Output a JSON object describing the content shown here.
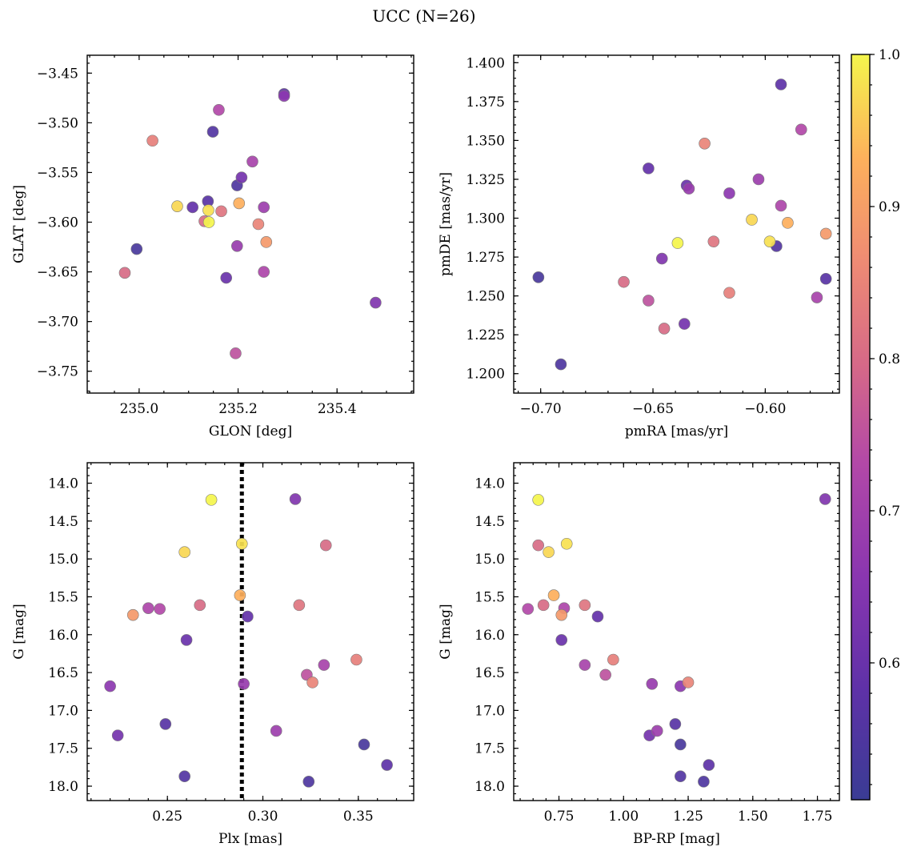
{
  "chart_data": {
    "title": "UCC (N=26)",
    "colorbar": {
      "colormap": "plasma",
      "range": [
        0.51,
        1.0
      ],
      "ticks": [
        "1.0",
        "0.9",
        "0.8",
        "0.7",
        "0.6"
      ],
      "tick_values": [
        1.0,
        0.9,
        0.8,
        0.7,
        0.6
      ]
    },
    "stars": [
      {
        "glon": 234.995,
        "glat": -3.627,
        "pmra": -0.701,
        "pmde": 1.262,
        "plx": 0.353,
        "g": 17.45,
        "bprp": 1.22,
        "prob": 0.54
      },
      {
        "glon": 235.198,
        "glat": -3.563,
        "pmra": -0.691,
        "pmde": 1.206,
        "plx": 0.324,
        "g": 17.94,
        "bprp": 1.31,
        "prob": 0.55
      },
      {
        "glon": 235.149,
        "glat": -3.509,
        "pmra": -0.595,
        "pmde": 1.282,
        "plx": 0.259,
        "g": 17.87,
        "bprp": 1.22,
        "prob": 0.56
      },
      {
        "glon": 235.139,
        "glat": -3.579,
        "pmra": -0.573,
        "pmde": 1.261,
        "plx": 0.249,
        "g": 17.18,
        "bprp": 1.2,
        "prob": 0.57
      },
      {
        "glon": 235.293,
        "glat": -3.471,
        "pmra": -0.593,
        "pmde": 1.386,
        "plx": 0.365,
        "g": 17.72,
        "bprp": 1.33,
        "prob": 0.58
      },
      {
        "glon": 235.108,
        "glat": -3.585,
        "pmra": -0.652,
        "pmde": 1.332,
        "plx": 0.292,
        "g": 15.76,
        "bprp": 0.9,
        "prob": 0.59
      },
      {
        "glon": 235.176,
        "glat": -3.656,
        "pmra": -0.635,
        "pmde": 1.321,
        "plx": 0.26,
        "g": 16.07,
        "bprp": 0.76,
        "prob": 0.6
      },
      {
        "glon": 235.207,
        "glat": -3.555,
        "pmra": -0.636,
        "pmde": 1.232,
        "plx": 0.224,
        "g": 17.33,
        "bprp": 1.1,
        "prob": 0.62
      },
      {
        "glon": 235.478,
        "glat": -3.681,
        "pmra": -0.646,
        "pmde": 1.274,
        "plx": 0.317,
        "g": 14.21,
        "bprp": 1.78,
        "prob": 0.64
      },
      {
        "glon": 235.293,
        "glat": -3.473,
        "pmra": -0.616,
        "pmde": 1.316,
        "plx": 0.22,
        "g": 16.68,
        "bprp": 1.22,
        "prob": 0.66
      },
      {
        "glon": 235.198,
        "glat": -3.624,
        "pmra": -0.634,
        "pmde": 1.319,
        "plx": 0.29,
        "g": 16.65,
        "bprp": 1.11,
        "prob": 0.68
      },
      {
        "glon": 235.252,
        "glat": -3.585,
        "pmra": -0.603,
        "pmde": 1.325,
        "plx": 0.307,
        "g": 17.27,
        "bprp": 1.13,
        "prob": 0.69
      },
      {
        "glon": 235.229,
        "glat": -3.539,
        "pmra": -0.577,
        "pmde": 1.249,
        "plx": 0.332,
        "g": 16.4,
        "bprp": 0.85,
        "prob": 0.71
      },
      {
        "glon": 235.252,
        "glat": -3.65,
        "pmra": -0.593,
        "pmde": 1.308,
        "plx": 0.24,
        "g": 15.65,
        "bprp": 0.77,
        "prob": 0.72
      },
      {
        "glon": 235.161,
        "glat": -3.487,
        "pmra": -0.584,
        "pmde": 1.357,
        "plx": 0.246,
        "g": 15.66,
        "bprp": 0.63,
        "prob": 0.73
      },
      {
        "glon": 235.195,
        "glat": -3.732,
        "pmra": -0.652,
        "pmde": 1.247,
        "plx": 0.323,
        "g": 16.53,
        "bprp": 0.93,
        "prob": 0.75
      },
      {
        "glon": 234.971,
        "glat": -3.651,
        "pmra": -0.645,
        "pmde": 1.229,
        "plx": 0.267,
        "g": 15.61,
        "bprp": 0.69,
        "prob": 0.8
      },
      {
        "glon": 235.132,
        "glat": -3.599,
        "pmra": -0.663,
        "pmde": 1.259,
        "plx": 0.333,
        "g": 14.82,
        "bprp": 0.67,
        "prob": 0.8
      },
      {
        "glon": 235.166,
        "glat": -3.589,
        "pmra": -0.623,
        "pmde": 1.285,
        "plx": 0.319,
        "g": 15.61,
        "bprp": 0.85,
        "prob": 0.82
      },
      {
        "glon": 235.027,
        "glat": -3.518,
        "pmra": -0.616,
        "pmde": 1.252,
        "plx": 0.349,
        "g": 16.33,
        "bprp": 0.96,
        "prob": 0.84
      },
      {
        "glon": 235.241,
        "glat": -3.602,
        "pmra": -0.627,
        "pmde": 1.348,
        "plx": 0.326,
        "g": 16.63,
        "bprp": 1.25,
        "prob": 0.85
      },
      {
        "glon": 235.257,
        "glat": -3.62,
        "pmra": -0.573,
        "pmde": 1.29,
        "plx": 0.232,
        "g": 15.74,
        "bprp": 0.76,
        "prob": 0.89
      },
      {
        "glon": 235.202,
        "glat": -3.581,
        "pmra": -0.59,
        "pmde": 1.297,
        "plx": 0.288,
        "g": 15.48,
        "bprp": 0.73,
        "prob": 0.93
      },
      {
        "glon": 235.077,
        "glat": -3.584,
        "pmra": -0.606,
        "pmde": 1.299,
        "plx": 0.259,
        "g": 14.91,
        "bprp": 0.71,
        "prob": 0.97
      },
      {
        "glon": 235.14,
        "glat": -3.588,
        "pmra": -0.598,
        "pmde": 1.285,
        "plx": 0.289,
        "g": 14.8,
        "bprp": 0.78,
        "prob": 0.98
      },
      {
        "glon": 235.141,
        "glat": -3.6,
        "pmra": -0.639,
        "pmde": 1.284,
        "plx": 0.273,
        "g": 14.22,
        "bprp": 0.67,
        "prob": 1.0
      }
    ],
    "panels": [
      {
        "id": "glon-glat",
        "type": "scatter",
        "x_key": "glon",
        "y_key": "glat",
        "xlabel": "GLON [deg]",
        "ylabel": "GLAT [deg]",
        "xlim": [
          234.895,
          235.555
        ],
        "ylim": [
          -3.772,
          -3.432
        ],
        "y_inverted": false,
        "xticks": [
          235.0,
          235.2,
          235.4
        ],
        "xtick_labels": [
          "235.0",
          "235.2",
          "235.4"
        ],
        "yticks": [
          -3.45,
          -3.5,
          -3.55,
          -3.6,
          -3.65,
          -3.7,
          -3.75
        ],
        "ytick_labels": [
          "−3.45",
          "−3.50",
          "−3.55",
          "−3.60",
          "−3.65",
          "−3.70",
          "−3.75"
        ],
        "xminor": 0.05,
        "yminor": 0.01
      },
      {
        "id": "pm",
        "type": "scatter",
        "x_key": "pmra",
        "y_key": "pmde",
        "xlabel": "pmRA [mas/yr]",
        "ylabel": "pmDE [mas/yr]",
        "xlim": [
          -0.712,
          -0.567
        ],
        "ylim": [
          1.1875,
          1.4048
        ],
        "y_inverted": false,
        "xticks": [
          -0.7,
          -0.65,
          -0.6
        ],
        "xtick_labels": [
          "−0.70",
          "−0.65",
          "−0.60"
        ],
        "yticks": [
          1.2,
          1.225,
          1.25,
          1.275,
          1.3,
          1.325,
          1.35,
          1.375,
          1.4
        ],
        "ytick_labels": [
          "1.200",
          "1.225",
          "1.250",
          "1.275",
          "1.300",
          "1.325",
          "1.350",
          "1.375",
          "1.400"
        ],
        "xminor": 0.01,
        "yminor": 0.005
      },
      {
        "id": "plx-g",
        "type": "scatter",
        "x_key": "plx",
        "y_key": "g",
        "xlabel": "Plx [mas]",
        "ylabel": "G [mag]",
        "xlim": [
          0.208,
          0.379
        ],
        "ylim": [
          13.73,
          18.19
        ],
        "y_inverted": true,
        "xticks": [
          0.25,
          0.3,
          0.35
        ],
        "xtick_labels": [
          "0.25",
          "0.30",
          "0.35"
        ],
        "yticks": [
          14.0,
          14.5,
          15.0,
          15.5,
          16.0,
          16.5,
          17.0,
          17.5,
          18.0
        ],
        "ytick_labels": [
          "14.0",
          "14.5",
          "15.0",
          "15.5",
          "16.0",
          "16.5",
          "17.0",
          "17.5",
          "18.0"
        ],
        "xminor": 0.01,
        "yminor": 0.1,
        "vline": 0.289
      },
      {
        "id": "cmd",
        "type": "scatter",
        "x_key": "bprp",
        "y_key": "g",
        "xlabel": "BP-RP [mag]",
        "ylabel": "G [mag]",
        "xlim": [
          0.575,
          1.835
        ],
        "ylim": [
          13.73,
          18.19
        ],
        "y_inverted": true,
        "xticks": [
          0.75,
          1.0,
          1.25,
          1.5,
          1.75
        ],
        "xtick_labels": [
          "0.75",
          "1.00",
          "1.25",
          "1.50",
          "1.75"
        ],
        "yticks": [
          14.0,
          14.5,
          15.0,
          15.5,
          16.0,
          16.5,
          17.0,
          17.5,
          18.0
        ],
        "ytick_labels": [
          "14.0",
          "14.5",
          "15.0",
          "15.5",
          "16.0",
          "16.5",
          "17.0",
          "17.5",
          "18.0"
        ],
        "xminor": 0.05,
        "yminor": 0.1
      }
    ]
  }
}
